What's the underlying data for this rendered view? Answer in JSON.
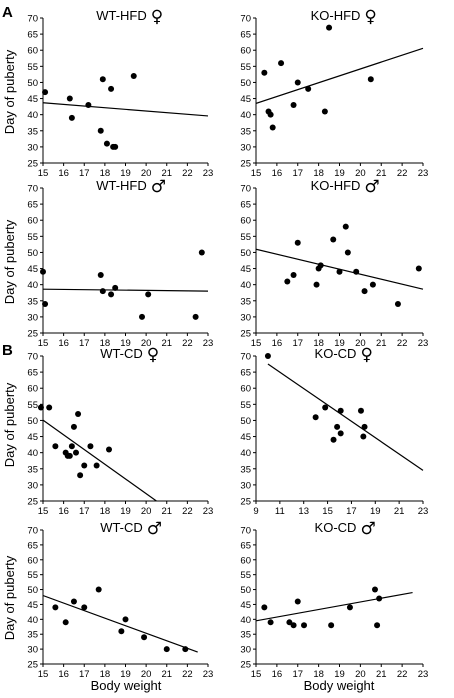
{
  "figure": {
    "section_labels": [
      {
        "text": "A"
      },
      {
        "text": "B"
      }
    ],
    "ylabel": "Day of puberty",
    "xlabel": "Body weight"
  },
  "chart_data": [
    {
      "type": "scatter",
      "title": "WT-HFD",
      "sex_symbol": "♀",
      "xlim": [
        15,
        23
      ],
      "xticks": [
        15,
        16,
        17,
        18,
        19,
        20,
        21,
        22,
        23
      ],
      "ylim": [
        25,
        70
      ],
      "yticks": [
        25,
        30,
        35,
        40,
        45,
        50,
        55,
        60,
        65,
        70
      ],
      "x": [
        15.1,
        16.3,
        16.4,
        17.2,
        17.8,
        17.9,
        18.1,
        18.3,
        18.4,
        18.5,
        19.4
      ],
      "y": [
        47,
        45,
        39,
        43,
        35,
        51,
        31,
        48,
        30,
        30,
        52
      ],
      "fit": {
        "x": [
          15,
          23
        ],
        "y": [
          43.7,
          39.6
        ]
      }
    },
    {
      "type": "scatter",
      "title": "KO-HFD",
      "sex_symbol": "♀",
      "xlim": [
        15,
        23
      ],
      "xticks": [
        15,
        16,
        17,
        18,
        19,
        20,
        21,
        22,
        23
      ],
      "ylim": [
        25,
        70
      ],
      "yticks": [
        25,
        30,
        35,
        40,
        45,
        50,
        55,
        60,
        65,
        70
      ],
      "x": [
        15.4,
        15.6,
        15.7,
        15.8,
        16.2,
        16.8,
        17.0,
        17.5,
        18.3,
        18.5,
        20.5
      ],
      "y": [
        53,
        41,
        40,
        36,
        56,
        43,
        50,
        48,
        41,
        67,
        51
      ],
      "fit": {
        "x": [
          15,
          23
        ],
        "y": [
          43.5,
          60.6
        ]
      }
    },
    {
      "type": "scatter",
      "title": "WT-HFD",
      "sex_symbol": "♂",
      "xlim": [
        15,
        23
      ],
      "xticks": [
        15,
        16,
        17,
        18,
        19,
        20,
        21,
        22,
        23
      ],
      "ylim": [
        25,
        70
      ],
      "yticks": [
        25,
        30,
        35,
        40,
        45,
        50,
        55,
        60,
        65,
        70
      ],
      "x": [
        15.0,
        15.1,
        17.8,
        17.9,
        18.3,
        18.5,
        19.8,
        20.1,
        22.4,
        22.7
      ],
      "y": [
        44,
        34,
        43,
        38,
        37,
        39,
        30,
        37,
        30,
        50
      ],
      "fit": {
        "x": [
          15,
          23
        ],
        "y": [
          38.6,
          38.0
        ]
      }
    },
    {
      "type": "scatter",
      "title": "KO-HFD",
      "sex_symbol": "♂",
      "xlim": [
        15,
        23
      ],
      "xticks": [
        15,
        16,
        17,
        18,
        19,
        20,
        21,
        22,
        23
      ],
      "ylim": [
        25,
        70
      ],
      "yticks": [
        25,
        30,
        35,
        40,
        45,
        50,
        55,
        60,
        65,
        70
      ],
      "x": [
        16.5,
        16.8,
        17.0,
        17.9,
        18.0,
        18.1,
        18.7,
        19.0,
        19.3,
        19.4,
        19.8,
        20.2,
        20.6,
        21.8,
        22.8
      ],
      "y": [
        41,
        43,
        53,
        40,
        45,
        46,
        54,
        44,
        58,
        50,
        44,
        38,
        40,
        34,
        45
      ],
      "fit": {
        "x": [
          15,
          23
        ],
        "y": [
          51.0,
          38.6
        ]
      }
    },
    {
      "type": "scatter",
      "title": "WT-CD",
      "sex_symbol": "♀",
      "xlim": [
        15,
        23
      ],
      "xticks": [
        15,
        16,
        17,
        18,
        19,
        20,
        21,
        22,
        23
      ],
      "ylim": [
        25,
        70
      ],
      "yticks": [
        25,
        30,
        35,
        40,
        45,
        50,
        55,
        60,
        65,
        70
      ],
      "x": [
        14.9,
        15.3,
        15.6,
        16.1,
        16.2,
        16.3,
        16.4,
        16.5,
        16.6,
        16.7,
        16.8,
        17.0,
        17.3,
        17.6,
        18.2
      ],
      "y": [
        54,
        54,
        42,
        40,
        39,
        39,
        42,
        48,
        40,
        52,
        33,
        36,
        42,
        36,
        41
      ],
      "fit": {
        "x": [
          14.8,
          20.5
        ],
        "y": [
          51.0,
          25.0
        ]
      }
    },
    {
      "type": "scatter",
      "title": "KO-CD",
      "sex_symbol": "♀",
      "xlim": [
        9,
        23
      ],
      "xticks": [
        9,
        11,
        13,
        15,
        17,
        19,
        21,
        23
      ],
      "ylim": [
        25,
        70
      ],
      "yticks": [
        25,
        30,
        35,
        40,
        45,
        50,
        55,
        60,
        65,
        70
      ],
      "x": [
        10.0,
        14.0,
        14.8,
        15.5,
        15.8,
        16.1,
        16.1,
        17.8,
        18.0,
        18.1
      ],
      "y": [
        70,
        51,
        54,
        44,
        48,
        53,
        46,
        53,
        45,
        48
      ],
      "fit": {
        "x": [
          10,
          23
        ],
        "y": [
          67.5,
          34.5
        ]
      }
    },
    {
      "type": "scatter",
      "title": "WT-CD",
      "sex_symbol": "♂",
      "xlim": [
        15,
        23
      ],
      "xticks": [
        15,
        16,
        17,
        18,
        19,
        20,
        21,
        22,
        23
      ],
      "ylim": [
        25,
        70
      ],
      "yticks": [
        25,
        30,
        35,
        40,
        45,
        50,
        55,
        60,
        65,
        70
      ],
      "x": [
        15.6,
        16.1,
        16.5,
        17.0,
        17.7,
        18.8,
        19.0,
        19.9,
        21.0,
        21.9
      ],
      "y": [
        44,
        39,
        46,
        44,
        50,
        36,
        40,
        34,
        30,
        30
      ],
      "fit": {
        "x": [
          15,
          22.5
        ],
        "y": [
          48,
          29
        ]
      }
    },
    {
      "type": "scatter",
      "title": "KO-CD",
      "sex_symbol": "♂",
      "xlim": [
        15,
        23
      ],
      "xticks": [
        15,
        16,
        17,
        18,
        19,
        20,
        21,
        22,
        23
      ],
      "ylim": [
        25,
        70
      ],
      "yticks": [
        25,
        30,
        35,
        40,
        45,
        50,
        55,
        60,
        65,
        70
      ],
      "x": [
        15.4,
        15.7,
        16.6,
        16.8,
        17.0,
        17.3,
        18.6,
        19.5,
        20.7,
        20.8,
        20.9
      ],
      "y": [
        44,
        39,
        39,
        38,
        46,
        38,
        38,
        44,
        50,
        38,
        47
      ],
      "fit": {
        "x": [
          15,
          22.5
        ],
        "y": [
          39.5,
          49
        ]
      }
    }
  ]
}
